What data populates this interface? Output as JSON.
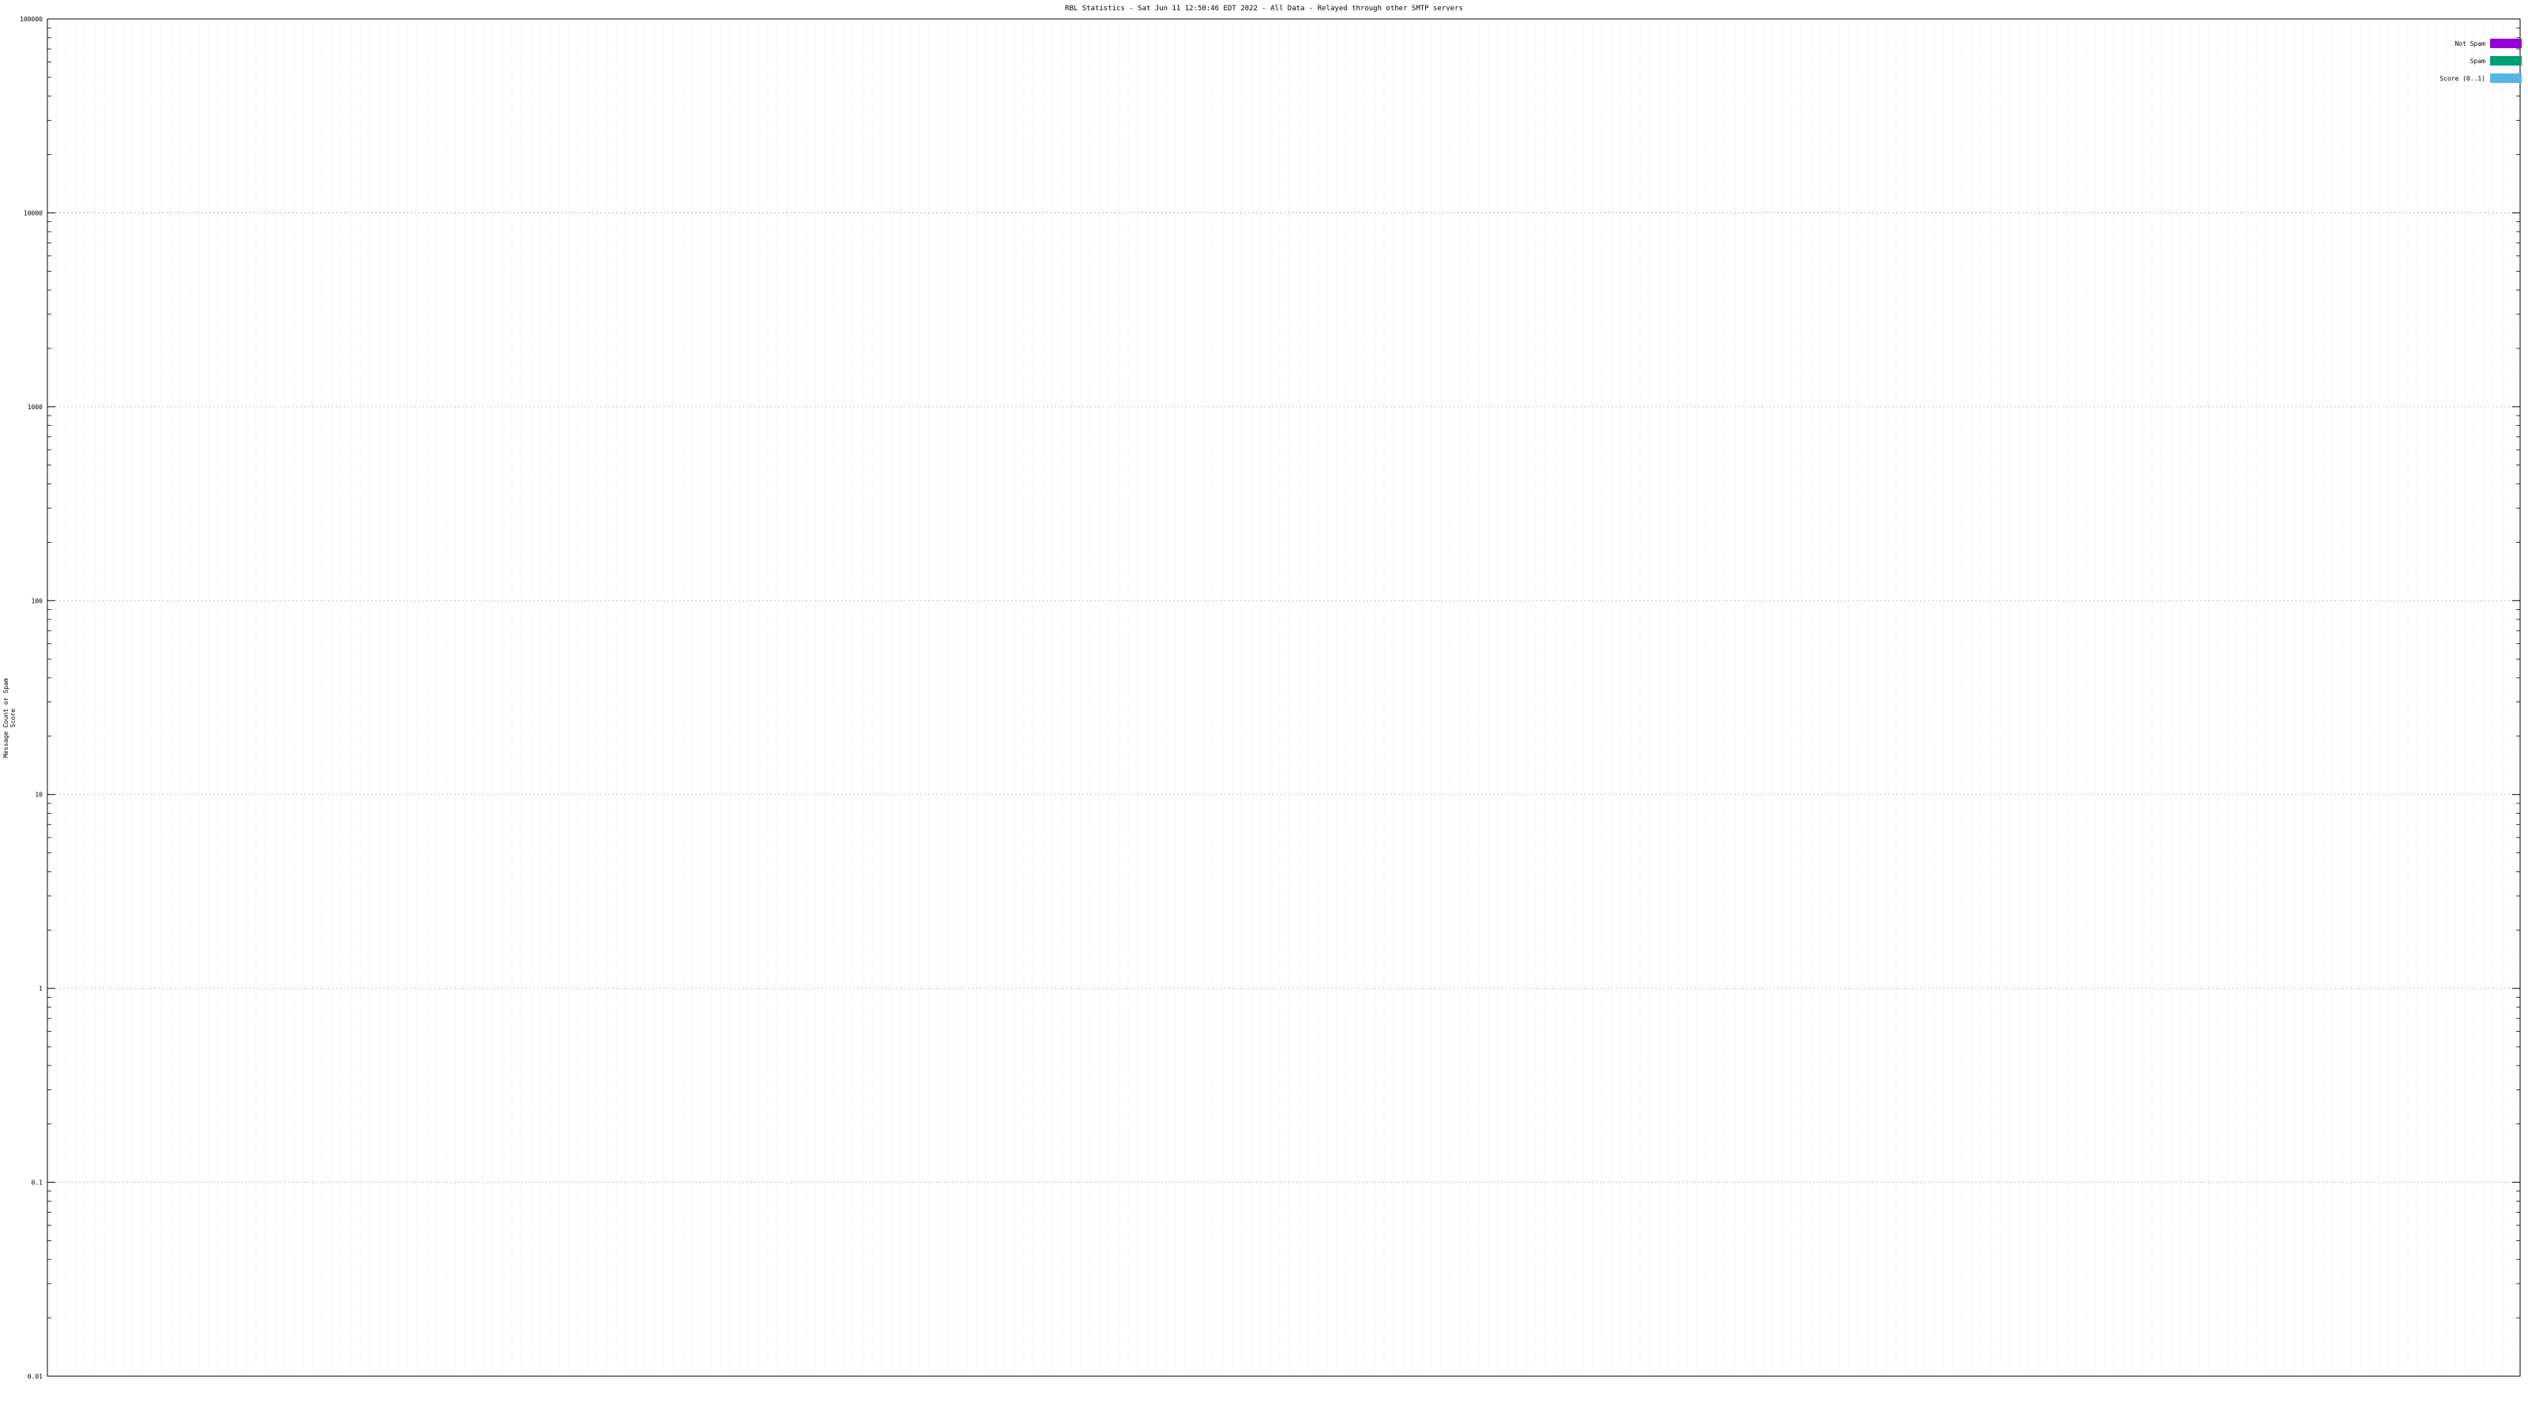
{
  "chart_data": {
    "type": "bar",
    "title": "RBL Statistics - Sat Jun 11 12:50:46 EDT 2022 - All Data - Relayed through other SMTP servers",
    "ylabel": "Message Count or Spam Score",
    "xlabel": "",
    "yscale": "log",
    "ylim": [
      0.01,
      100000
    ],
    "y_ticks": [
      "0.01",
      "0.1",
      "1",
      "10",
      "100",
      "1000",
      "10000",
      "100000"
    ],
    "grid": true,
    "legend_position": "top-right",
    "series": [
      {
        "name": "Not Spam",
        "color": "#9400d3"
      },
      {
        "name": "Spam",
        "color": "#009e73"
      },
      {
        "name": "Score (0..1)",
        "color": "#56b4e9"
      }
    ]
  }
}
